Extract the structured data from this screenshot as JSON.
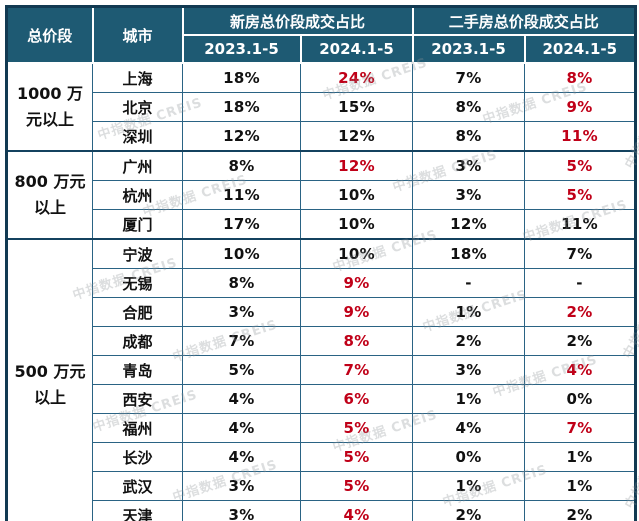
{
  "watermark": "中指数据 CREIS",
  "colors": {
    "header_bg": "#1e5a73",
    "header_text": "#ffffff",
    "highlight_red": "#c00018",
    "body_text": "#111111",
    "border_inner": "#2a6384",
    "border_outer": "#123a52"
  },
  "table": {
    "headers": {
      "segment": "总价段",
      "city": "城市",
      "new_home": "新房总价段成交占比",
      "secondhand": "二手房总价段成交占比",
      "periods": [
        "2023.1-5",
        "2024.1-5",
        "2023.1-5",
        "2024.1-5"
      ]
    },
    "groups": [
      {
        "label": "1000 万\n元以上",
        "rows": [
          {
            "city": "上海",
            "values": [
              {
                "v": "18%"
              },
              {
                "v": "24%",
                "red": true
              },
              {
                "v": "7%"
              },
              {
                "v": "8%",
                "red": true
              }
            ]
          },
          {
            "city": "北京",
            "values": [
              {
                "v": "18%"
              },
              {
                "v": "15%"
              },
              {
                "v": "8%"
              },
              {
                "v": "9%",
                "red": true
              }
            ]
          },
          {
            "city": "深圳",
            "values": [
              {
                "v": "12%"
              },
              {
                "v": "12%"
              },
              {
                "v": "8%"
              },
              {
                "v": "11%",
                "red": true
              }
            ]
          }
        ]
      },
      {
        "label": "800 万元\n以上",
        "rows": [
          {
            "city": "广州",
            "values": [
              {
                "v": "8%"
              },
              {
                "v": "12%",
                "red": true
              },
              {
                "v": "3%"
              },
              {
                "v": "5%",
                "red": true
              }
            ]
          },
          {
            "city": "杭州",
            "values": [
              {
                "v": "11%"
              },
              {
                "v": "10%"
              },
              {
                "v": "3%"
              },
              {
                "v": "5%",
                "red": true
              }
            ]
          },
          {
            "city": "厦门",
            "values": [
              {
                "v": "17%"
              },
              {
                "v": "10%"
              },
              {
                "v": "12%"
              },
              {
                "v": "11%"
              }
            ]
          }
        ]
      },
      {
        "label": "500 万元\n以上",
        "rows": [
          {
            "city": "宁波",
            "values": [
              {
                "v": "10%"
              },
              {
                "v": "10%"
              },
              {
                "v": "18%"
              },
              {
                "v": "7%"
              }
            ]
          },
          {
            "city": "无锡",
            "values": [
              {
                "v": "8%"
              },
              {
                "v": "9%",
                "red": true
              },
              {
                "v": "-"
              },
              {
                "v": "-"
              }
            ]
          },
          {
            "city": "合肥",
            "values": [
              {
                "v": "3%"
              },
              {
                "v": "9%",
                "red": true
              },
              {
                "v": "1%"
              },
              {
                "v": "2%",
                "red": true
              }
            ]
          },
          {
            "city": "成都",
            "values": [
              {
                "v": "7%"
              },
              {
                "v": "8%",
                "red": true
              },
              {
                "v": "2%"
              },
              {
                "v": "2%"
              }
            ]
          },
          {
            "city": "青岛",
            "values": [
              {
                "v": "5%"
              },
              {
                "v": "7%",
                "red": true
              },
              {
                "v": "3%"
              },
              {
                "v": "4%",
                "red": true
              }
            ]
          },
          {
            "city": "西安",
            "values": [
              {
                "v": "4%"
              },
              {
                "v": "6%",
                "red": true
              },
              {
                "v": "1%"
              },
              {
                "v": "0%"
              }
            ]
          },
          {
            "city": "福州",
            "values": [
              {
                "v": "4%"
              },
              {
                "v": "5%",
                "red": true
              },
              {
                "v": "4%"
              },
              {
                "v": "7%",
                "red": true
              }
            ]
          },
          {
            "city": "长沙",
            "values": [
              {
                "v": "4%"
              },
              {
                "v": "5%",
                "red": true
              },
              {
                "v": "0%"
              },
              {
                "v": "1%"
              }
            ]
          },
          {
            "city": "武汉",
            "values": [
              {
                "v": "3%"
              },
              {
                "v": "5%",
                "red": true
              },
              {
                "v": "1%"
              },
              {
                "v": "1%"
              }
            ]
          },
          {
            "city": "天津",
            "values": [
              {
                "v": "3%"
              },
              {
                "v": "4%",
                "red": true
              },
              {
                "v": "2%"
              },
              {
                "v": "2%"
              }
            ]
          }
        ]
      }
    ]
  }
}
